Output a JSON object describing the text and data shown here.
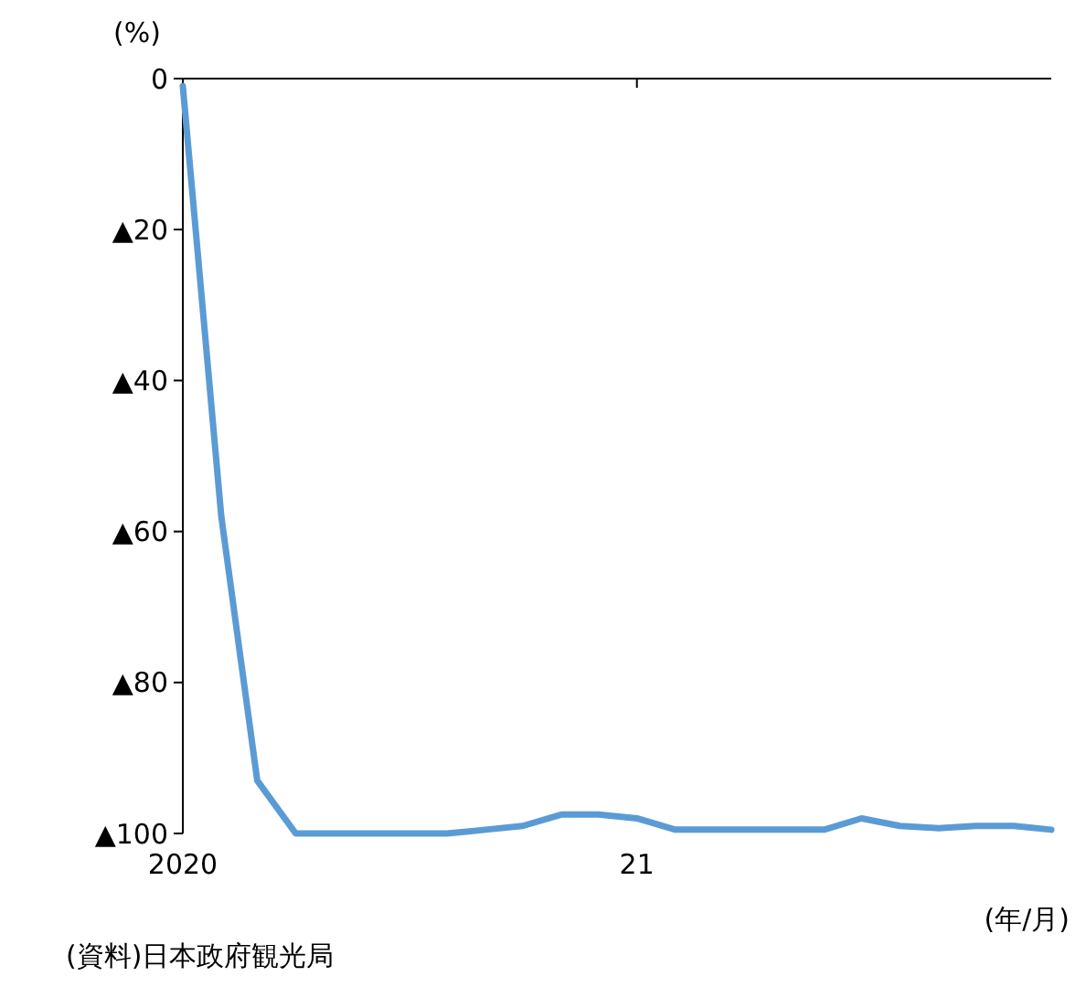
{
  "chart_data": {
    "type": "line",
    "ylabel": "(%)",
    "xlabel": "(年/月)",
    "annotations": [
      "(資料)日本政府観光局"
    ],
    "x": [
      "2020-01",
      "2020-02",
      "2020-03",
      "2020-04",
      "2020-05",
      "2020-06",
      "2020-07",
      "2020-08",
      "2020-09",
      "2020-10",
      "2020-11",
      "2020-12",
      "2021-01",
      "2021-02",
      "2021-03",
      "2021-04",
      "2021-05",
      "2021-06",
      "2021-07",
      "2021-08",
      "2021-09",
      "2021-10",
      "2021-11",
      "2021-12"
    ],
    "series": [
      {
        "color": "#5b9bd5",
        "values": [
          -1,
          -58,
          -93,
          -100,
          -100,
          -100,
          -100,
          -100,
          -99.5,
          -99,
          -97.5,
          -97.5,
          -98,
          -99.5,
          -99.5,
          -99.5,
          -99.5,
          -99.5,
          -98,
          -99,
          -99.3,
          -99,
          -99,
          -99.5
        ]
      }
    ],
    "xlim": [
      "2020-01",
      "2021-12"
    ],
    "xticks": [
      {
        "value": "2020-01",
        "label": "2020"
      },
      {
        "value": "2021-01",
        "label": "21"
      }
    ],
    "ylim": [
      -100,
      0
    ],
    "yticks": [
      {
        "value": 0,
        "label": "0"
      },
      {
        "value": -20,
        "label": "▲20"
      },
      {
        "value": -40,
        "label": "▲40"
      },
      {
        "value": -60,
        "label": "▲60"
      },
      {
        "value": -80,
        "label": "▲80"
      },
      {
        "value": -100,
        "label": "▲100"
      }
    ],
    "grid": false,
    "marker": "none",
    "line_style": "solid"
  }
}
